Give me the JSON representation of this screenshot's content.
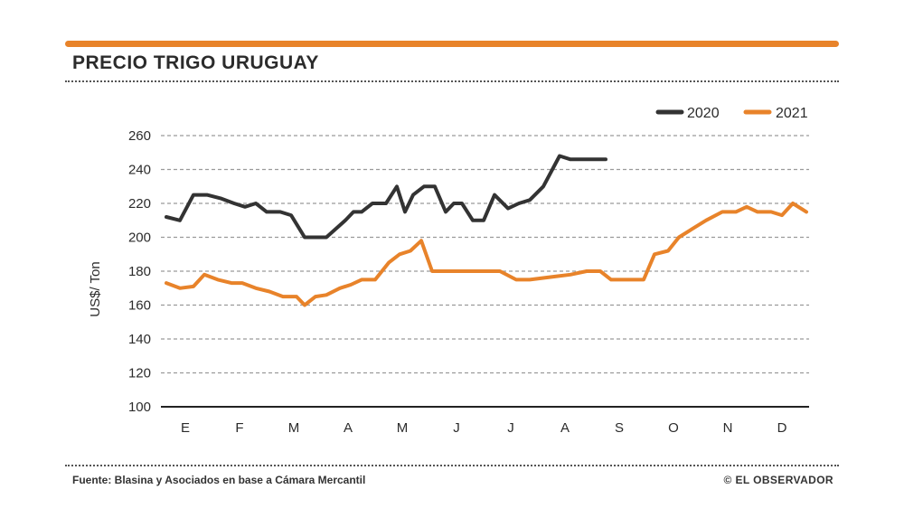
{
  "header": {
    "title": "PRECIO TRIGO URUGUAY"
  },
  "footer": {
    "source": "Fuente: Blasina y Asociados en base a Cámara Mercantil",
    "credit": "© EL OBSERVADOR"
  },
  "colors": {
    "accent": "#e8832a",
    "series_2020": "#333333",
    "series_2021": "#e8832a",
    "grid": "#9a9a9a"
  },
  "chart_data": {
    "type": "line",
    "title": "PRECIO TRIGO URUGUAY",
    "xlabel": "",
    "ylabel": "US$/ Ton",
    "ylim": [
      100,
      260
    ],
    "yticks": [
      100,
      120,
      140,
      160,
      180,
      200,
      220,
      240,
      260
    ],
    "grid": true,
    "legend_position": "top-right",
    "month_labels": [
      "E",
      "F",
      "M",
      "A",
      "M",
      "J",
      "J",
      "A",
      "S",
      "O",
      "N",
      "D"
    ],
    "x_note": "x values are month index (0 = E ... 11 = D), fractional for intra-month observations",
    "series": [
      {
        "name": "2020",
        "color": "#333333",
        "x": [
          -0.35,
          -0.1,
          0.15,
          0.4,
          0.65,
          0.9,
          1.1,
          1.3,
          1.5,
          1.75,
          1.95,
          2.2,
          2.6,
          2.95,
          3.1,
          3.25,
          3.45,
          3.7,
          3.9,
          4.05,
          4.2,
          4.4,
          4.6,
          4.8,
          4.95,
          5.1,
          5.3,
          5.5,
          5.7,
          5.95,
          6.15,
          6.35,
          6.6,
          6.9,
          7.1,
          7.3,
          7.5,
          7.75
        ],
        "values": [
          212,
          210,
          225,
          225,
          223,
          220,
          218,
          220,
          215,
          215,
          213,
          200,
          200,
          210,
          215,
          215,
          220,
          220,
          230,
          215,
          225,
          230,
          230,
          215,
          220,
          220,
          210,
          210,
          225,
          217,
          220,
          222,
          230,
          248,
          246,
          246,
          246,
          246
        ]
      },
      {
        "name": "2021",
        "color": "#e8832a",
        "x": [
          -0.35,
          -0.1,
          0.15,
          0.35,
          0.6,
          0.85,
          1.05,
          1.3,
          1.55,
          1.8,
          2.05,
          2.2,
          2.4,
          2.6,
          2.85,
          3.05,
          3.25,
          3.5,
          3.75,
          3.95,
          4.15,
          4.35,
          4.55,
          4.7,
          4.9,
          5.2,
          5.5,
          5.8,
          6.1,
          6.35,
          6.6,
          6.85,
          7.1,
          7.4,
          7.65,
          7.85,
          8.15,
          8.45,
          8.65,
          8.9,
          9.1,
          9.35,
          9.6,
          9.9,
          10.15,
          10.35,
          10.55,
          10.8,
          11.0,
          11.2,
          11.45
        ],
        "values": [
          173,
          170,
          171,
          178,
          175,
          173,
          173,
          170,
          168,
          165,
          165,
          160,
          165,
          166,
          170,
          172,
          175,
          175,
          185,
          190,
          192,
          198,
          180,
          180,
          180,
          180,
          180,
          180,
          175,
          175,
          176,
          177,
          178,
          180,
          180,
          175,
          175,
          175,
          190,
          192,
          200,
          205,
          210,
          215,
          215,
          218,
          215,
          215,
          213,
          220,
          215
        ]
      }
    ]
  }
}
